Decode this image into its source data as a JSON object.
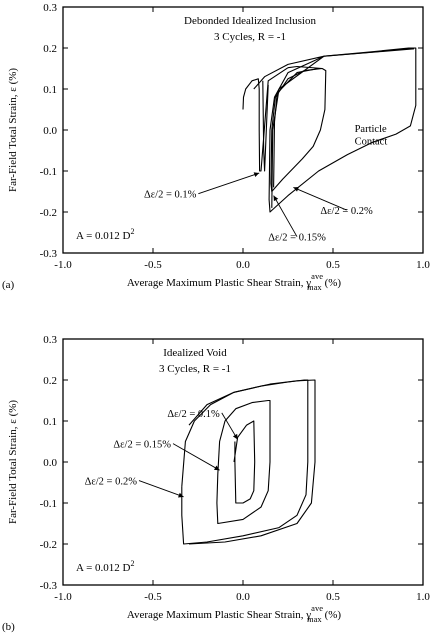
{
  "chart_data": [
    {
      "type": "line",
      "panel_label": "(a)",
      "title": "Debonded Idealized Inclusion",
      "subtitle": "3 Cycles, R = -1",
      "xlabel": "Average Maximum Plastic Shear Strain, γ",
      "xlabel_sup": "ave",
      "xlabel_sub": "max",
      "xlabel_unit": "(%)",
      "ylabel": "Far-Field Total Strain, ε (%)",
      "xlim": [
        -1.0,
        1.0
      ],
      "ylim": [
        -0.3,
        0.3
      ],
      "xticks": [
        -1.0,
        -0.5,
        0.0,
        0.5,
        1.0
      ],
      "yticks": [
        -0.3,
        -0.2,
        -0.1,
        0.0,
        0.1,
        0.2,
        0.3
      ],
      "xtick_labels": [
        "-1.0",
        "-0.5",
        "0.0",
        "0.5",
        "1.0"
      ],
      "ytick_labels": [
        "-0.3",
        "-0.2",
        "-0.1",
        "0.0",
        "0.1",
        "0.2",
        "0.3"
      ],
      "area_note": "A = 0.012 D",
      "area_note_sup": "2",
      "annotations": [
        {
          "text": "Particle",
          "x": 0.62,
          "y": -0.005
        },
        {
          "text": "Contact",
          "x": 0.62,
          "y": -0.035
        },
        {
          "text": "Δε/2 = 0.1%",
          "x": -0.55,
          "y": -0.165,
          "arrow_to": [
            0.09,
            -0.105
          ]
        },
        {
          "text": "Δε/2 = 0.2%",
          "x": 0.43,
          "y": -0.205,
          "arrow_to": [
            0.28,
            -0.14
          ]
        },
        {
          "text": "Δε/2 = 0.15%",
          "x": 0.14,
          "y": -0.27,
          "arrow_to": [
            0.17,
            -0.16
          ]
        }
      ],
      "series": [
        {
          "x": [
            0.0,
            0.003,
            0.015,
            0.05,
            0.085,
            0.09,
            0.09,
            0.092,
            0.1,
            0.14,
            0.25
          ],
          "y": [
            0.05,
            0.08,
            0.1,
            0.12,
            0.125,
            0.1,
            0.0,
            -0.1,
            -0.1,
            0.12,
            0.152
          ]
        },
        {
          "x": [
            0.25,
            0.3,
            0.44,
            0.46,
            0.455,
            0.43,
            0.39,
            0.33,
            0.22,
            0.16,
            0.155,
            0.16,
            0.18,
            0.25,
            0.34,
            0.44
          ],
          "y": [
            0.152,
            0.155,
            0.15,
            0.145,
            0.05,
            0.0,
            -0.04,
            -0.07,
            -0.12,
            -0.15,
            -0.13,
            0.0,
            0.08,
            0.125,
            0.145,
            0.15
          ]
        },
        {
          "x": [
            0.06,
            0.12,
            0.25,
            0.45,
            0.7,
            0.92,
            0.96,
            0.96,
            0.93,
            0.85,
            0.72,
            0.58,
            0.42,
            0.25,
            0.15,
            0.145,
            0.15,
            0.175,
            0.25,
            0.45,
            0.72,
            0.96
          ],
          "y": [
            0.1,
            0.13,
            0.16,
            0.18,
            0.19,
            0.2,
            0.2,
            0.06,
            0.01,
            -0.01,
            -0.03,
            -0.06,
            -0.1,
            -0.16,
            -0.2,
            -0.17,
            0.0,
            0.08,
            0.14,
            0.18,
            0.19,
            0.2
          ]
        },
        {
          "x": [
            0.11,
            0.115,
            0.12,
            0.14
          ],
          "y": [
            0.12,
            -0.05,
            -0.1,
            0.11
          ]
        },
        {
          "x": [
            0.17,
            0.175,
            0.19,
            0.3,
            0.42
          ],
          "y": [
            -0.14,
            0.02,
            0.09,
            0.14,
            0.15
          ]
        },
        {
          "x": [
            0.16,
            0.165,
            0.2,
            0.45,
            0.95
          ],
          "y": [
            -0.19,
            0.0,
            0.1,
            0.18,
            0.198
          ]
        }
      ]
    },
    {
      "type": "line",
      "panel_label": "(b)",
      "title": "Idealized Void",
      "subtitle": "3 Cycles, R = -1",
      "xlabel": "Average Maximum Plastic Shear Strain, γ",
      "xlabel_sup": "ave",
      "xlabel_sub": "max",
      "xlabel_unit": "(%)",
      "ylabel": "Far-Field Total Strain, ε (%)",
      "xlim": [
        -1.0,
        1.0
      ],
      "ylim": [
        -0.3,
        0.3
      ],
      "xticks": [
        -1.0,
        -0.5,
        0.0,
        0.5,
        1.0
      ],
      "yticks": [
        -0.3,
        -0.2,
        -0.1,
        0.0,
        0.1,
        0.2,
        0.3
      ],
      "xtick_labels": [
        "-1.0",
        "-0.5",
        "0.0",
        "0.5",
        "1.0"
      ],
      "ytick_labels": [
        "-0.3",
        "-0.2",
        "-0.1",
        "0.0",
        "0.1",
        "0.2",
        "0.3"
      ],
      "area_note": "A = 0.012 D",
      "area_note_sup": "2",
      "annotations": [
        {
          "text": "Δε/2 = 0.1%",
          "x": -0.42,
          "y": 0.11,
          "arrow_to": [
            -0.03,
            0.055
          ]
        },
        {
          "text": "Δε/2 = 0.15%",
          "x": -0.72,
          "y": 0.035,
          "arrow_to": [
            -0.13,
            -0.02
          ]
        },
        {
          "text": "Δε/2 = 0.2%",
          "x": -0.88,
          "y": -0.055,
          "arrow_to": [
            -0.33,
            -0.085
          ]
        }
      ],
      "series": [
        {
          "x": [
            -0.05,
            -0.03,
            0.02,
            0.06,
            0.065,
            0.06,
            0.04,
            0.0,
            -0.04,
            -0.045,
            -0.045
          ],
          "y": [
            0.0,
            0.06,
            0.09,
            0.1,
            0.0,
            -0.07,
            -0.09,
            -0.1,
            -0.1,
            0.0,
            0.05
          ]
        },
        {
          "x": [
            -0.14,
            -0.13,
            -0.1,
            -0.04,
            0.05,
            0.14,
            0.15,
            0.15,
            0.14,
            0.1,
            0.0,
            -0.14,
            -0.145,
            -0.14
          ],
          "y": [
            -0.03,
            0.05,
            0.1,
            0.13,
            0.145,
            0.15,
            0.15,
            0.0,
            -0.07,
            -0.11,
            -0.14,
            -0.15,
            -0.1,
            -0.03
          ]
        },
        {
          "x": [
            -0.34,
            -0.32,
            -0.27,
            -0.18,
            -0.05,
            0.1,
            0.25,
            0.34,
            0.36,
            0.36,
            0.35,
            0.3,
            0.2,
            0.0,
            -0.2,
            -0.33,
            -0.34,
            -0.34
          ],
          "y": [
            -0.06,
            0.05,
            0.1,
            0.14,
            0.17,
            0.185,
            0.195,
            0.2,
            0.2,
            0.0,
            -0.08,
            -0.13,
            -0.16,
            -0.18,
            -0.195,
            -0.2,
            -0.13,
            -0.06
          ]
        },
        {
          "x": [
            -0.3,
            -0.2,
            -0.05,
            0.15,
            0.3,
            0.4,
            0.4,
            0.38,
            0.3,
            0.1,
            -0.1,
            -0.3
          ],
          "y": [
            0.09,
            0.14,
            0.17,
            0.19,
            0.198,
            0.2,
            0.0,
            -0.1,
            -0.15,
            -0.18,
            -0.195,
            -0.2
          ]
        }
      ]
    }
  ]
}
